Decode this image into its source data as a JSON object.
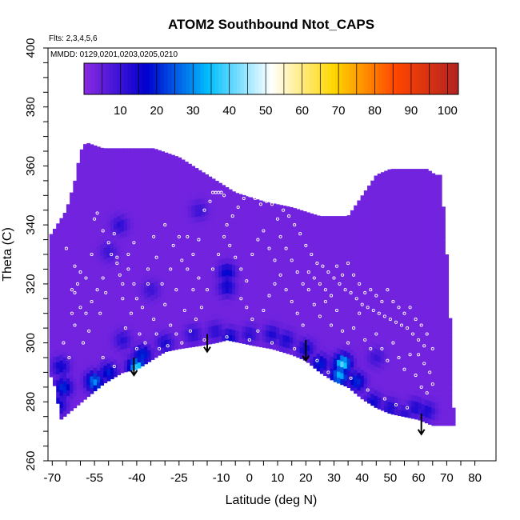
{
  "chart_data": {
    "type": "heatmap",
    "title": "ATOM2 Southbound Ntot_CAPS",
    "annotations": [
      "Flts: 2,3,4,5,6",
      "MMDD: 0129,0201,0203,0205,0210"
    ],
    "xlabel": "Latitude (deg N)",
    "ylabel": "Theta (C)",
    "xlim": [
      -70,
      80
    ],
    "ylim": [
      260,
      400
    ],
    "x_ticks": [
      -70,
      -55,
      -40,
      -25,
      -10,
      0,
      10,
      20,
      30,
      40,
      50,
      60,
      70,
      80
    ],
    "x_tick_labels": [
      "-70",
      "-55",
      "-40",
      "-25",
      "-10",
      "0",
      "10",
      "20",
      "30",
      "40",
      "50",
      "60",
      "70",
      "80"
    ],
    "y_ticks": [
      260,
      280,
      300,
      320,
      340,
      360,
      380,
      400
    ],
    "y_tick_labels": [
      "260",
      "280",
      "300",
      "320",
      "340",
      "360",
      "380",
      "400"
    ],
    "colorbar": {
      "range": [
        0,
        103
      ],
      "ticks": [
        10,
        20,
        30,
        40,
        50,
        60,
        70,
        80,
        90,
        100
      ],
      "tick_labels": [
        "10",
        "20",
        "30",
        "40",
        "50",
        "60",
        "70",
        "80",
        "90",
        "100"
      ],
      "colors": [
        "#8a2be2",
        "#0000cd",
        "#00bfff",
        "#ffffff",
        "#ffd700",
        "#ff4500",
        "#b22222"
      ]
    },
    "background_value": 3,
    "upper_boundary": [
      [
        -71,
        336
      ],
      [
        -65,
        345
      ],
      [
        -62,
        355
      ],
      [
        -60,
        365
      ],
      [
        -58,
        368
      ],
      [
        -52,
        366
      ],
      [
        -42,
        366
      ],
      [
        -34,
        366
      ],
      [
        -25,
        363
      ],
      [
        -15,
        357
      ],
      [
        -5,
        351
      ],
      [
        5,
        348
      ],
      [
        15,
        346
      ],
      [
        25,
        343
      ],
      [
        35,
        343
      ],
      [
        45,
        357
      ],
      [
        50,
        359
      ],
      [
        55,
        359
      ],
      [
        60,
        359
      ],
      [
        63,
        359
      ],
      [
        66,
        357
      ],
      [
        68,
        357
      ],
      [
        70,
        330
      ],
      [
        72,
        294
      ],
      [
        72,
        287
      ],
      [
        72,
        278
      ]
    ],
    "lower_boundary": [
      [
        -71,
        290
      ],
      [
        -69,
        285
      ],
      [
        -67,
        274
      ],
      [
        -62,
        278
      ],
      [
        -57,
        282
      ],
      [
        -52,
        286
      ],
      [
        -45,
        290
      ],
      [
        -40,
        291
      ],
      [
        -35,
        294
      ],
      [
        -30,
        297
      ],
      [
        -25,
        298
      ],
      [
        -18,
        299
      ],
      [
        -12,
        300
      ],
      [
        -8,
        301
      ],
      [
        -3,
        300
      ],
      [
        2,
        299
      ],
      [
        8,
        298
      ],
      [
        15,
        296
      ],
      [
        20,
        294
      ],
      [
        25,
        290
      ],
      [
        30,
        287
      ],
      [
        35,
        285
      ],
      [
        40,
        281
      ],
      [
        45,
        278
      ],
      [
        50,
        276
      ],
      [
        55,
        275
      ],
      [
        60,
        274
      ],
      [
        65,
        272
      ],
      [
        72,
        272
      ]
    ],
    "high_value_patches": [
      {
        "lat": -45,
        "theta": 301,
        "value": 12
      },
      {
        "lat": -38,
        "theta": 296,
        "value": 22
      },
      {
        "lat": -40,
        "theta": 292,
        "value": 38
      },
      {
        "lat": -50,
        "theta": 290,
        "value": 20
      },
      {
        "lat": -55,
        "theta": 287,
        "value": 30
      },
      {
        "lat": -66,
        "theta": 285,
        "value": 22
      },
      {
        "lat": -68,
        "theta": 279,
        "value": 18
      },
      {
        "lat": -67,
        "theta": 292,
        "value": 16
      },
      {
        "lat": -30,
        "theta": 300,
        "value": 14
      },
      {
        "lat": -20,
        "theta": 303,
        "value": 12
      },
      {
        "lat": -12,
        "theta": 304,
        "value": 12
      },
      {
        "lat": -7,
        "theta": 302,
        "value": 16
      },
      {
        "lat": 0,
        "theta": 303,
        "value": 12
      },
      {
        "lat": 8,
        "theta": 303,
        "value": 14
      },
      {
        "lat": 13,
        "theta": 301,
        "value": 14
      },
      {
        "lat": 20,
        "theta": 298,
        "value": 16
      },
      {
        "lat": 25,
        "theta": 293,
        "value": 20
      },
      {
        "lat": 33,
        "theta": 293,
        "value": 40
      },
      {
        "lat": 32,
        "theta": 289,
        "value": 34
      },
      {
        "lat": 38,
        "theta": 287,
        "value": 22
      },
      {
        "lat": 44,
        "theta": 280,
        "value": 16
      },
      {
        "lat": 50,
        "theta": 278,
        "value": 14
      },
      {
        "lat": 59,
        "theta": 278,
        "value": 14
      },
      {
        "lat": 63,
        "theta": 277,
        "value": 14
      },
      {
        "lat": 55,
        "theta": 276,
        "value": 12
      },
      {
        "lat": -8,
        "theta": 324,
        "value": 18
      },
      {
        "lat": -8,
        "theta": 319,
        "value": 16
      },
      {
        "lat": -46,
        "theta": 340,
        "value": 12
      },
      {
        "lat": -50,
        "theta": 331,
        "value": 10
      },
      {
        "lat": -18,
        "theta": 345,
        "value": 10
      },
      {
        "lat": -35,
        "theta": 318,
        "value": 10
      },
      {
        "lat": 45,
        "theta": 295,
        "value": 10
      }
    ],
    "arrows": [
      {
        "lat": -41,
        "theta_top": 295,
        "theta_bottom": 289
      },
      {
        "lat": -15,
        "theta_top": 303,
        "theta_bottom": 297
      },
      {
        "lat": 20,
        "theta_top": 301,
        "theta_bottom": 294
      },
      {
        "lat": 61,
        "theta_top": 276,
        "theta_bottom": 269
      }
    ],
    "sample_points": [
      [
        -62,
        326
      ],
      [
        -60,
        324
      ],
      [
        -58,
        322
      ],
      [
        -62,
        317
      ],
      [
        -60,
        312
      ],
      [
        -62,
        306
      ],
      [
        -59,
        300
      ],
      [
        -56,
        330
      ],
      [
        -55,
        342
      ],
      [
        -54,
        344
      ],
      [
        -52,
        338
      ],
      [
        -50,
        334
      ],
      [
        -49,
        330
      ],
      [
        -48,
        337
      ],
      [
        -47,
        329
      ],
      [
        -47,
        327
      ],
      [
        -46,
        323
      ],
      [
        -45,
        320
      ],
      [
        -45,
        315
      ],
      [
        -43,
        325
      ],
      [
        -41,
        320
      ],
      [
        -40,
        315
      ],
      [
        -38,
        312
      ],
      [
        -36,
        325
      ],
      [
        -34,
        336
      ],
      [
        -33,
        329
      ],
      [
        -31,
        320
      ],
      [
        -30,
        313
      ],
      [
        -28,
        306
      ],
      [
        -27,
        333
      ],
      [
        -25,
        336
      ],
      [
        -24,
        328
      ],
      [
        -22,
        325
      ],
      [
        -20,
        318
      ],
      [
        -18,
        335
      ],
      [
        -16,
        345
      ],
      [
        -14,
        348
      ],
      [
        -13,
        351
      ],
      [
        -12,
        351
      ],
      [
        -11,
        351
      ],
      [
        -10,
        351
      ],
      [
        -9,
        350
      ],
      [
        -8,
        340
      ],
      [
        -6,
        343
      ],
      [
        -4,
        346
      ],
      [
        -2,
        349
      ],
      [
        0,
        350
      ],
      [
        2,
        349
      ],
      [
        4,
        347
      ],
      [
        6,
        348
      ],
      [
        8,
        347
      ],
      [
        10,
        342
      ],
      [
        12,
        345
      ],
      [
        14,
        343
      ],
      [
        16,
        340
      ],
      [
        18,
        337
      ],
      [
        20,
        333
      ],
      [
        22,
        330
      ],
      [
        24,
        327
      ],
      [
        26,
        326
      ],
      [
        28,
        324
      ],
      [
        30,
        322
      ],
      [
        32,
        320
      ],
      [
        34,
        318
      ],
      [
        36,
        317
      ],
      [
        38,
        315
      ],
      [
        40,
        313
      ],
      [
        42,
        312
      ],
      [
        44,
        311
      ],
      [
        46,
        310
      ],
      [
        48,
        309
      ],
      [
        50,
        308
      ],
      [
        52,
        307
      ],
      [
        54,
        306
      ],
      [
        56,
        305
      ],
      [
        58,
        303
      ],
      [
        60,
        301
      ],
      [
        62,
        299
      ],
      [
        -3,
        315
      ],
      [
        -1,
        312
      ],
      [
        1,
        308
      ],
      [
        3,
        304
      ],
      [
        5,
        311
      ],
      [
        7,
        316
      ],
      [
        9,
        320
      ],
      [
        11,
        323
      ],
      [
        13,
        318
      ],
      [
        15,
        314
      ],
      [
        17,
        310
      ],
      [
        19,
        306
      ],
      [
        21,
        318
      ],
      [
        23,
        313
      ],
      [
        25,
        309
      ],
      [
        27,
        314
      ],
      [
        29,
        306
      ],
      [
        31,
        311
      ],
      [
        33,
        304
      ],
      [
        35,
        300
      ],
      [
        37,
        305
      ],
      [
        39,
        310
      ],
      [
        41,
        301
      ],
      [
        43,
        298
      ],
      [
        45,
        303
      ],
      [
        47,
        298
      ],
      [
        49,
        294
      ],
      [
        51,
        300
      ],
      [
        53,
        295
      ],
      [
        55,
        291
      ],
      [
        57,
        296
      ],
      [
        59,
        289
      ],
      [
        61,
        285
      ],
      [
        63,
        283
      ],
      [
        65,
        286
      ],
      [
        -65,
        332
      ],
      [
        -63,
        310
      ],
      [
        -66,
        300
      ],
      [
        -64,
        295
      ],
      [
        -57,
        304
      ],
      [
        -53,
        310
      ],
      [
        -51,
        317
      ],
      [
        -44,
        305
      ],
      [
        -42,
        310
      ],
      [
        -39,
        303
      ],
      [
        -37,
        300
      ],
      [
        -33,
        303
      ],
      [
        -29,
        299
      ],
      [
        -26,
        303
      ],
      [
        -23,
        311
      ],
      [
        -21,
        304
      ],
      [
        -19,
        308
      ],
      [
        -17,
        312
      ],
      [
        -15,
        318
      ],
      [
        -13,
        325
      ],
      [
        -11,
        330
      ],
      [
        -9,
        336
      ],
      [
        -7,
        333
      ],
      [
        -5,
        329
      ],
      [
        -3,
        325
      ],
      [
        -1,
        321
      ],
      [
        1,
        330
      ],
      [
        3,
        335
      ],
      [
        5,
        338
      ],
      [
        7,
        332
      ],
      [
        9,
        328
      ],
      [
        11,
        336
      ],
      [
        13,
        332
      ],
      [
        15,
        328
      ],
      [
        17,
        324
      ],
      [
        19,
        320
      ],
      [
        21,
        324
      ],
      [
        23,
        322
      ],
      [
        25,
        320
      ],
      [
        27,
        318
      ],
      [
        29,
        316
      ],
      [
        31,
        326
      ],
      [
        33,
        323
      ],
      [
        35,
        327
      ],
      [
        37,
        323
      ],
      [
        39,
        320
      ],
      [
        41,
        317
      ],
      [
        43,
        318
      ],
      [
        45,
        316
      ],
      [
        47,
        314
      ],
      [
        49,
        318
      ],
      [
        51,
        314
      ],
      [
        53,
        312
      ],
      [
        55,
        310
      ],
      [
        57,
        312
      ],
      [
        59,
        308
      ],
      [
        61,
        306
      ],
      [
        63,
        303
      ],
      [
        65,
        298
      ],
      [
        64,
        290
      ],
      [
        62,
        293
      ],
      [
        60,
        296
      ],
      [
        -52,
        295
      ],
      [
        -48,
        292
      ],
      [
        -40,
        298
      ],
      [
        -32,
        298
      ],
      [
        -24,
        300
      ],
      [
        -16,
        301
      ],
      [
        -8,
        302
      ],
      [
        0,
        301
      ],
      [
        8,
        300
      ],
      [
        16,
        298
      ],
      [
        24,
        294
      ],
      [
        28,
        290
      ],
      [
        36,
        288
      ],
      [
        42,
        284
      ],
      [
        48,
        281
      ],
      [
        52,
        279
      ],
      [
        56,
        278
      ],
      [
        -18,
        322
      ],
      [
        -20,
        330
      ],
      [
        -22,
        336
      ],
      [
        -30,
        340
      ],
      [
        -28,
        325
      ],
      [
        -26,
        318
      ],
      [
        -34,
        308
      ],
      [
        -36,
        320
      ],
      [
        -41,
        334
      ],
      [
        -43,
        330
      ],
      [
        -52,
        322
      ],
      [
        -54,
        318
      ],
      [
        -56,
        314
      ],
      [
        -58,
        310
      ],
      [
        -61,
        320
      ],
      [
        -63,
        318
      ]
    ]
  }
}
